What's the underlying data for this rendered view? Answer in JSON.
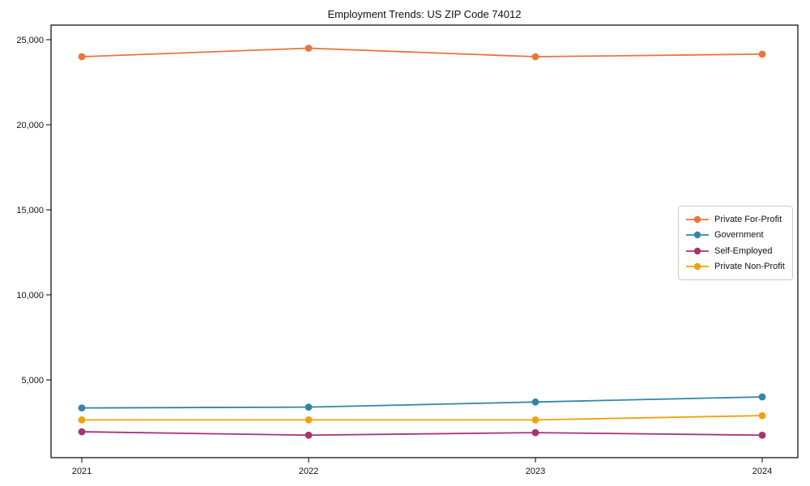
{
  "chart_data": {
    "type": "line",
    "title": "Employment Trends: US ZIP Code 74012",
    "xlabel": "",
    "ylabel": "",
    "x": [
      2021,
      2022,
      2023,
      2024
    ],
    "x_tick_labels": [
      "2021",
      "2022",
      "2023",
      "2024"
    ],
    "y_ticks": [
      5000,
      10000,
      15000,
      20000,
      25000
    ],
    "y_tick_labels": [
      "5,000",
      "10,000",
      "15,000",
      "20,000",
      "25,000"
    ],
    "ylim": [
      430,
      25860
    ],
    "grid": false,
    "legend_position": "center-right",
    "axis_color": "#000000",
    "series": [
      {
        "name": "Private For-Profit",
        "color": "#e8763c",
        "values": [
          24000,
          24500,
          24000,
          24150
        ]
      },
      {
        "name": "Government",
        "color": "#3186a6",
        "values": [
          3350,
          3400,
          3700,
          4000
        ]
      },
      {
        "name": "Self-Employed",
        "color": "#a53474",
        "values": [
          1950,
          1750,
          1900,
          1750
        ]
      },
      {
        "name": "Private Non-Profit",
        "color": "#f0a10a",
        "values": [
          2650,
          2650,
          2650,
          2900
        ]
      }
    ]
  }
}
